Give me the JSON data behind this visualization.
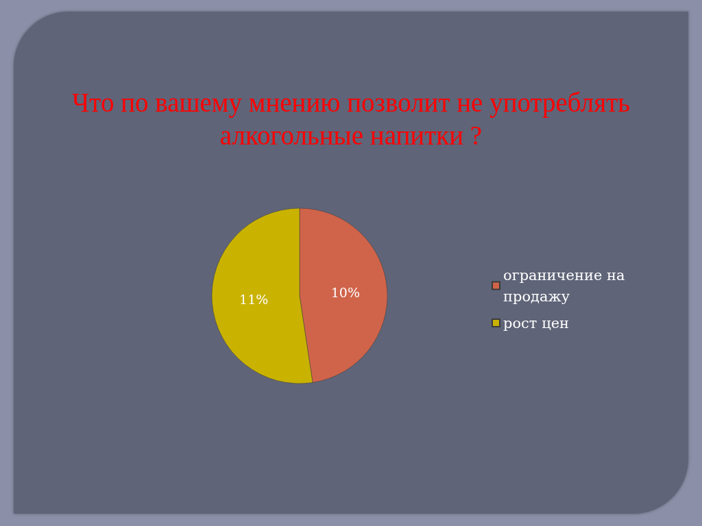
{
  "chart_data": {
    "type": "pie",
    "title": "Что по вашему мнению позволит не употреблять алкогольные напитки ?",
    "categories": [
      "ограничение на продажу",
      "рост цен"
    ],
    "values": [
      10,
      11
    ],
    "colors": [
      "#d0644a",
      "#c9b200"
    ],
    "value_labels": [
      "10%",
      "11%"
    ],
    "legend": "right"
  }
}
